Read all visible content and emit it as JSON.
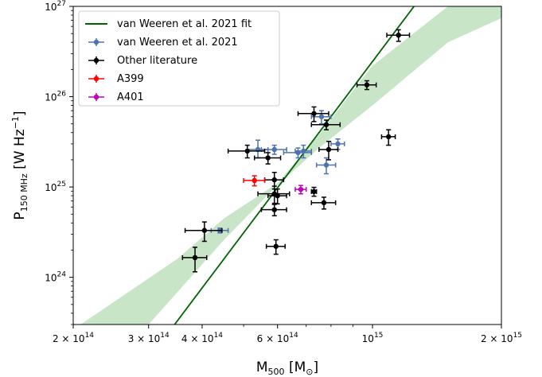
{
  "chart_data": {
    "type": "scatter",
    "xscale": "log",
    "yscale": "log",
    "xlim": [
      200000000000000.0,
      2000000000000000.0
    ],
    "ylim": [
      3e+23,
      1e+27
    ],
    "xlabel": {
      "main": "M",
      "sub": "500",
      "unit_open": " [M",
      "unit_sub": "⊙",
      "unit_close": "]"
    },
    "ylabel": {
      "main": "P",
      "sub": "150 MHz",
      "unit": "  [W Hz",
      "sup": "−1",
      "close": "]"
    },
    "xticks": [
      {
        "value": 200000000000000.0,
        "mant": "2 × 10",
        "exp": "14"
      },
      {
        "value": 300000000000000.0,
        "mant": "3 × 10",
        "exp": "14"
      },
      {
        "value": 400000000000000.0,
        "mant": "4 × 10",
        "exp": "14"
      },
      {
        "value": 600000000000000.0,
        "mant": "6 × 10",
        "exp": "14"
      },
      {
        "value": 1000000000000000.0,
        "mant": "10",
        "exp": "15"
      },
      {
        "value": 2000000000000000.0,
        "mant": "2 × 10",
        "exp": "15"
      }
    ],
    "yticks": [
      {
        "value": 1e+24,
        "mant": "10",
        "exp": "24"
      },
      {
        "value": 1e+25,
        "mant": "10",
        "exp": "25"
      },
      {
        "value": 1e+26,
        "mant": "10",
        "exp": "26"
      },
      {
        "value": 1e+27,
        "mant": "10",
        "exp": "27"
      }
    ],
    "fit": {
      "name": "van Weeren et al. 2021 fit",
      "color": "#006400",
      "band_color": "#9ccf9a",
      "line": [
        [
          345000000000000.0,
          3e+23
        ],
        [
          1250000000000000.0,
          1e+27
        ]
      ],
      "band_upper": [
        [
          208000000000000.0,
          3e+23
        ],
        [
          350000000000000.0,
          1.6e+24
        ],
        [
          450000000000000.0,
          4.5e+24
        ],
        [
          600000000000000.0,
          1.1e+25
        ],
        [
          750000000000000.0,
          3.8e+25
        ],
        [
          1000000000000000.0,
          2.2e+26
        ],
        [
          1500000000000000.0,
          1e+27
        ]
      ],
      "band_lower": [
        [
          2300000000000000.0,
          1e+27
        ],
        [
          1500000000000000.0,
          4e+26
        ],
        [
          1000000000000000.0,
          8e+25
        ],
        [
          750000000000000.0,
          2.7e+25
        ],
        [
          600000000000000.0,
          1.05e+25
        ],
        [
          450000000000000.0,
          2.6e+24
        ],
        [
          300000000000000.0,
          3e+23
        ]
      ]
    },
    "series": [
      {
        "name": "van Weeren et al. 2021",
        "color": "#4c72b0",
        "points": [
          {
            "x": 440000000000000.0,
            "y": 3.3e+24,
            "xerr": [
              20000000000000.0,
              20000000000000.0
            ],
            "yerr": [
              2e+23,
              2e+23
            ]
          },
          {
            "x": 540000000000000.0,
            "y": 2.6e+25,
            "xerr": [
              30000000000000.0,
              30000000000000.0
            ],
            "yerr": [
              5e+24,
              7e+24
            ]
          },
          {
            "x": 590000000000000.0,
            "y": 2.6e+25,
            "xerr": [
              40000000000000.0,
              40000000000000.0
            ],
            "yerr": [
              3e+24,
              3e+24
            ]
          },
          {
            "x": 670000000000000.0,
            "y": 2.4e+25,
            "xerr": [
              50000000000000.0,
              50000000000000.0
            ],
            "yerr": [
              3e+24,
              3e+24
            ]
          },
          {
            "x": 690000000000000.0,
            "y": 2.5e+25,
            "xerr": [
              30000000000000.0,
              30000000000000.0
            ],
            "yerr": [
              4e+24,
              4e+24
            ]
          },
          {
            "x": 760000000000000.0,
            "y": 6e+25,
            "xerr": [
              40000000000000.0,
              40000000000000.0
            ],
            "yerr": [
              1e+25,
              1e+25
            ]
          },
          {
            "x": 780000000000000.0,
            "y": 1.75e+25,
            "xerr": [
              40000000000000.0,
              40000000000000.0
            ],
            "yerr": [
              3.5e+24,
              3.5e+24
            ]
          },
          {
            "x": 830000000000000.0,
            "y": 3e+25,
            "xerr": [
              30000000000000.0,
              30000000000000.0
            ],
            "yerr": [
              4e+24,
              4e+24
            ]
          }
        ]
      },
      {
        "name": "Other literature",
        "color": "#000000",
        "points": [
          {
            "x": 1150000000000000.0,
            "y": 4.8e+26,
            "xerr": [
              70000000000000.0,
              70000000000000.0
            ],
            "yerr": [
              7e+25,
              7e+25
            ]
          },
          {
            "x": 970000000000000.0,
            "y": 1.35e+26,
            "xerr": [
              50000000000000.0,
              50000000000000.0
            ],
            "yerr": [
              1.5e+25,
              1.5e+25
            ]
          },
          {
            "x": 1090000000000000.0,
            "y": 3.6e+25,
            "xerr": [
              40000000000000.0,
              40000000000000.0
            ],
            "yerr": [
              7e+24,
              7e+24
            ]
          },
          {
            "x": 730000000000000.0,
            "y": 6.5e+25,
            "xerr": [
              60000000000000.0,
              60000000000000.0
            ],
            "yerr": [
              1.2e+25,
              1.2e+25
            ]
          },
          {
            "x": 780000000000000.0,
            "y": 4.9e+25,
            "xerr": [
              60000000000000.0,
              60000000000000.0
            ],
            "yerr": [
              6e+24,
              6e+24
            ]
          },
          {
            "x": 790000000000000.0,
            "y": 2.6e+25,
            "xerr": [
              40000000000000.0,
              40000000000000.0
            ],
            "yerr": [
              6e+24,
              6e+24
            ]
          },
          {
            "x": 510000000000000.0,
            "y": 2.5e+25,
            "xerr": [
              50000000000000.0,
              50000000000000.0
            ],
            "yerr": [
              4e+24,
              4e+24
            ]
          },
          {
            "x": 570000000000000.0,
            "y": 2.1e+25,
            "xerr": [
              40000000000000.0,
              40000000000000.0
            ],
            "yerr": [
              3e+24,
              3e+24
            ]
          },
          {
            "x": 590000000000000.0,
            "y": 1.2e+25,
            "xerr": [
              30000000000000.0,
              30000000000000.0
            ],
            "yerr": [
              2.5e+24,
              2.5e+24
            ]
          },
          {
            "x": 590000000000000.0,
            "y": 8.4e+24,
            "xerr": [
              50000000000000.0,
              50000000000000.0
            ],
            "yerr": [
              1.8e+24,
              1.8e+24
            ]
          },
          {
            "x": 600000000000000.0,
            "y": 8e+24,
            "xerr": [
              30000000000000.0,
              30000000000000.0
            ],
            "yerr": [
              1.5e+24,
              1.5e+24
            ]
          },
          {
            "x": 590000000000000.0,
            "y": 5.6e+24,
            "xerr": [
              40000000000000.0,
              40000000000000.0
            ],
            "yerr": [
              8e+23,
              8e+23
            ]
          },
          {
            "x": 730000000000000.0,
            "y": 8.9e+24,
            "xerr": [
              10000000000000.0,
              10000000000000.0
            ],
            "yerr": [
              1e+24,
              1e+24
            ]
          },
          {
            "x": 770000000000000.0,
            "y": 6.7e+24,
            "xerr": [
              50000000000000.0,
              50000000000000.0
            ],
            "yerr": [
              1e+24,
              1e+24
            ]
          },
          {
            "x": 595000000000000.0,
            "y": 2.2e+24,
            "xerr": [
              30000000000000.0,
              30000000000000.0
            ],
            "yerr": [
              4e+23,
              4e+23
            ]
          },
          {
            "x": 405000000000000.0,
            "y": 3.3e+24,
            "xerr": [
              40000000000000.0,
              40000000000000.0
            ],
            "yerr": [
              8e+23,
              8e+23
            ]
          },
          {
            "x": 385000000000000.0,
            "y": 1.65e+24,
            "xerr": [
              25000000000000.0,
              25000000000000.0
            ],
            "yerr": [
              5e+23,
              5e+23
            ]
          }
        ]
      },
      {
        "name": "A399",
        "color": "#ff0000",
        "points": [
          {
            "x": 530000000000000.0,
            "y": 1.18e+25,
            "xerr": [
              30000000000000.0,
              30000000000000.0
            ],
            "yerr": [
              1.5e+24,
              1.5e+24
            ]
          }
        ]
      },
      {
        "name": "A401",
        "color": "#bf00bf",
        "points": [
          {
            "x": 680000000000000.0,
            "y": 9.4e+24,
            "xerr": [
              20000000000000.0,
              20000000000000.0
            ],
            "yerr": [
              1e+24,
              1e+24
            ]
          }
        ]
      }
    ],
    "legend": {
      "position": "upper left"
    }
  }
}
